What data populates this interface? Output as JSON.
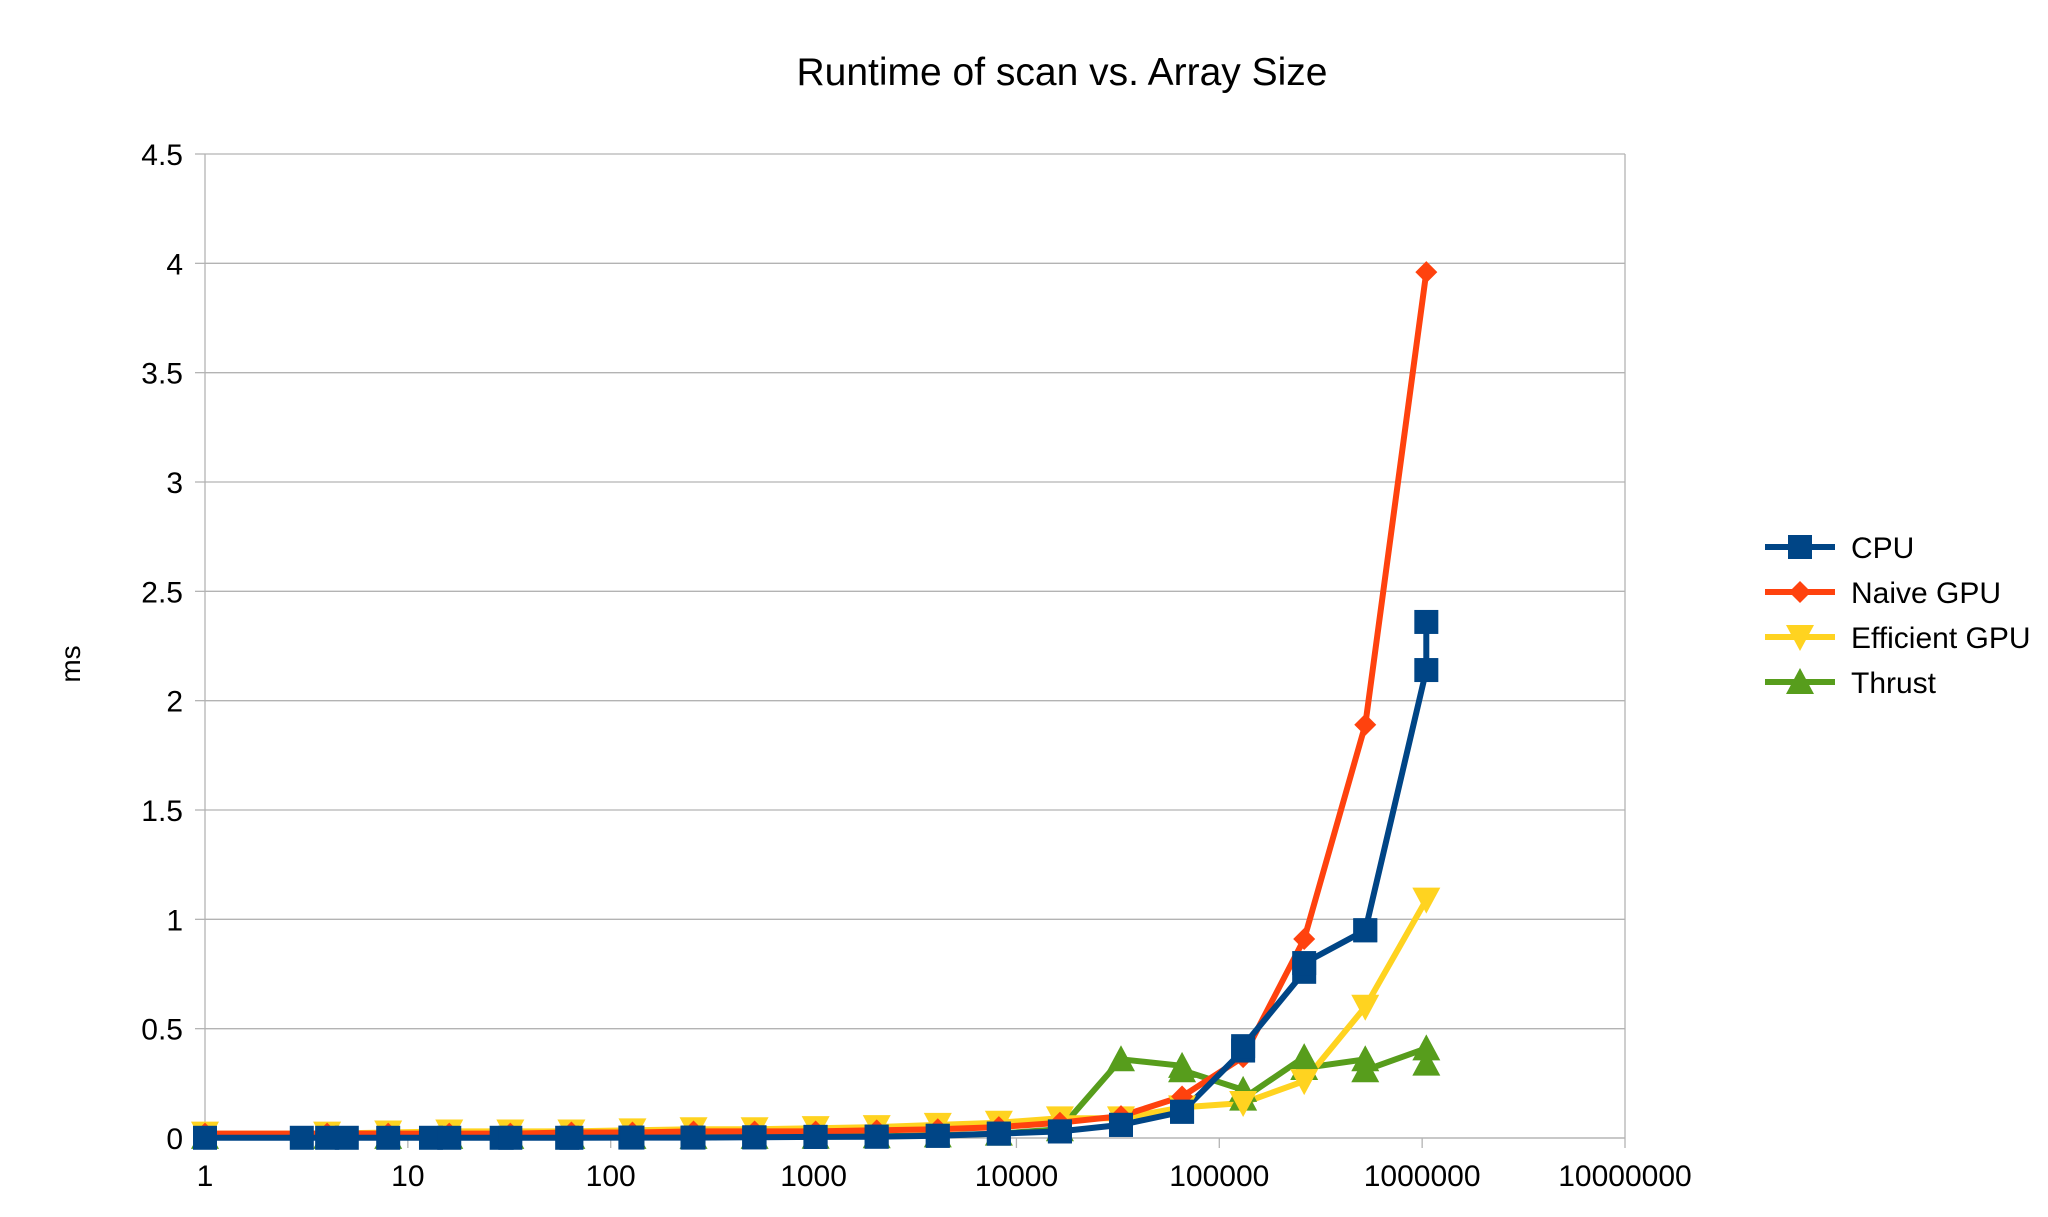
{
  "chart_data": {
    "type": "line",
    "title": "Runtime of scan vs. Array Size",
    "xlabel": "",
    "ylabel": "ms",
    "x_scale": "log",
    "xlim": [
      1,
      10000000
    ],
    "ylim": [
      0,
      4.5
    ],
    "x_ticks": [
      1,
      10,
      100,
      1000,
      10000,
      100000,
      1000000,
      10000000
    ],
    "x_tick_labels": [
      "1",
      "10",
      "100",
      "1000",
      "10000",
      "100000",
      "1000000",
      "10000000"
    ],
    "y_ticks": [
      0,
      0.5,
      1,
      1.5,
      2,
      2.5,
      3,
      3.5,
      4,
      4.5
    ],
    "y_tick_labels": [
      "0",
      "0.5",
      "1",
      "1.5",
      "2",
      "2.5",
      "3",
      "3.5",
      "4",
      "4.5"
    ],
    "grid": "horizontal",
    "legend_position": "right",
    "series": [
      {
        "name": "CPU",
        "color": "#004586",
        "marker": "square",
        "points": [
          [
            1,
            0.001
          ],
          [
            3,
            0.001
          ],
          [
            4,
            0.001
          ],
          [
            5,
            0.001
          ],
          [
            8,
            0.001
          ],
          [
            13,
            0.001
          ],
          [
            16,
            0.001
          ],
          [
            29,
            0.001
          ],
          [
            32,
            0.001
          ],
          [
            61,
            0.001
          ],
          [
            64,
            0.001
          ],
          [
            125,
            0.002
          ],
          [
            128,
            0.002
          ],
          [
            253,
            0.002
          ],
          [
            256,
            0.002
          ],
          [
            509,
            0.003
          ],
          [
            512,
            0.003
          ],
          [
            1021,
            0.005
          ],
          [
            1024,
            0.005
          ],
          [
            2045,
            0.006
          ],
          [
            2048,
            0.006
          ],
          [
            4093,
            0.01
          ],
          [
            4096,
            0.01
          ],
          [
            8189,
            0.02
          ],
          [
            8192,
            0.02
          ],
          [
            16381,
            0.03
          ],
          [
            16384,
            0.03
          ],
          [
            32765,
            0.06
          ],
          [
            32768,
            0.06
          ],
          [
            65533,
            0.12
          ],
          [
            65536,
            0.12
          ],
          [
            131069,
            0.4
          ],
          [
            131072,
            0.42
          ],
          [
            262141,
            0.76
          ],
          [
            262144,
            0.8
          ],
          [
            524285,
            0.95
          ],
          [
            524288,
            0.95
          ],
          [
            1048573,
            2.14
          ],
          [
            1048576,
            2.36
          ]
        ]
      },
      {
        "name": "Naive GPU",
        "color": "#ff420e",
        "marker": "diamond",
        "points": [
          [
            1,
            0.02
          ],
          [
            4,
            0.02
          ],
          [
            8,
            0.02
          ],
          [
            16,
            0.02
          ],
          [
            32,
            0.02
          ],
          [
            64,
            0.025
          ],
          [
            128,
            0.025
          ],
          [
            256,
            0.03
          ],
          [
            512,
            0.03
          ],
          [
            1024,
            0.03
          ],
          [
            2048,
            0.035
          ],
          [
            4096,
            0.04
          ],
          [
            8192,
            0.05
          ],
          [
            16384,
            0.07
          ],
          [
            32768,
            0.1
          ],
          [
            65536,
            0.19
          ],
          [
            131072,
            0.37
          ],
          [
            262144,
            0.91
          ],
          [
            524288,
            1.89
          ],
          [
            1048576,
            3.96
          ]
        ]
      },
      {
        "name": "Efficient GPU",
        "color": "#ffd320",
        "marker": "triangle-down",
        "points": [
          [
            1,
            0.02
          ],
          [
            4,
            0.02
          ],
          [
            8,
            0.025
          ],
          [
            16,
            0.03
          ],
          [
            32,
            0.03
          ],
          [
            64,
            0.03
          ],
          [
            128,
            0.035
          ],
          [
            256,
            0.04
          ],
          [
            512,
            0.04
          ],
          [
            1024,
            0.045
          ],
          [
            2048,
            0.05
          ],
          [
            4096,
            0.06
          ],
          [
            8192,
            0.07
          ],
          [
            16384,
            0.09
          ],
          [
            32768,
            0.09
          ],
          [
            65536,
            0.14
          ],
          [
            131072,
            0.16
          ],
          [
            262144,
            0.26
          ],
          [
            524288,
            0.6
          ],
          [
            1048576,
            1.09
          ]
        ]
      },
      {
        "name": "Thrust",
        "color": "#579d1c",
        "marker": "triangle-up",
        "points": [
          [
            1,
            0.005
          ],
          [
            4,
            0.005
          ],
          [
            8,
            0.005
          ],
          [
            16,
            0.005
          ],
          [
            32,
            0.005
          ],
          [
            64,
            0.005
          ],
          [
            128,
            0.005
          ],
          [
            256,
            0.005
          ],
          [
            512,
            0.005
          ],
          [
            1024,
            0.006
          ],
          [
            2048,
            0.008
          ],
          [
            4096,
            0.012
          ],
          [
            8192,
            0.02
          ],
          [
            16384,
            0.04
          ],
          [
            32768,
            0.36
          ],
          [
            65533,
            0.33
          ],
          [
            65536,
            0.31
          ],
          [
            131069,
            0.22
          ],
          [
            131072,
            0.18
          ],
          [
            262141,
            0.37
          ],
          [
            262144,
            0.32
          ],
          [
            524285,
            0.36
          ],
          [
            524288,
            0.31
          ],
          [
            1048573,
            0.41
          ],
          [
            1048576,
            0.34
          ]
        ]
      }
    ]
  }
}
